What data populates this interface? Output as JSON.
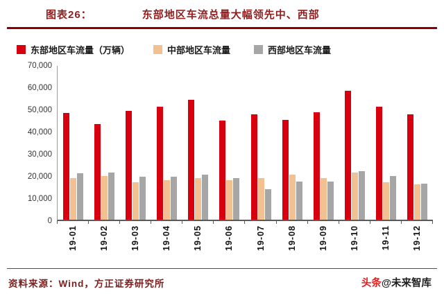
{
  "header": {
    "fig_label": "图表26：",
    "fig_title": "东部地区车流总量大幅领先中、西部"
  },
  "legend": [
    {
      "name": "东部地区车流量（万辆）",
      "color": "#d7000f"
    },
    {
      "name": "中部地区车流量",
      "color": "#f2c091"
    },
    {
      "name": "西部地区车流量",
      "color": "#a6a6a6"
    }
  ],
  "chart_data": {
    "type": "bar",
    "title": "东部地区车流总量大幅领先中、西部",
    "categories": [
      "19-01",
      "19-02",
      "19-03",
      "19-04",
      "19-05",
      "19-06",
      "19-07",
      "19-08",
      "19-09",
      "19-10",
      "19-11",
      "19-12"
    ],
    "series": [
      {
        "name": "东部地区车流量（万辆）",
        "color": "#d7000f",
        "values": [
          48500,
          43500,
          49500,
          51500,
          54500,
          45000,
          48000,
          45500,
          49000,
          58500,
          51500,
          48000
        ]
      },
      {
        "name": "中部地区车流量",
        "color": "#f2c091",
        "values": [
          19000,
          20000,
          17000,
          18000,
          19000,
          18000,
          19000,
          20500,
          19000,
          21500,
          17000,
          16000
        ]
      },
      {
        "name": "西部地区车流量",
        "color": "#a6a6a6",
        "values": [
          21000,
          21500,
          19500,
          19500,
          20500,
          19000,
          14000,
          17500,
          17500,
          22000,
          20000,
          16500
        ]
      }
    ],
    "xlabel": "",
    "ylabel": "",
    "ylim": [
      0,
      70000
    ],
    "ytick_interval": 10000,
    "yticks": [
      "70,000",
      "60,000",
      "50,000",
      "40,000",
      "30,000",
      "20,000",
      "10,000",
      "0"
    ],
    "grid": false,
    "legend_position": "top"
  },
  "footer": {
    "source": "资料来源：Wind，方正证券研究所",
    "brand_prefix": "头条",
    "brand_handle": "@未来智库"
  }
}
